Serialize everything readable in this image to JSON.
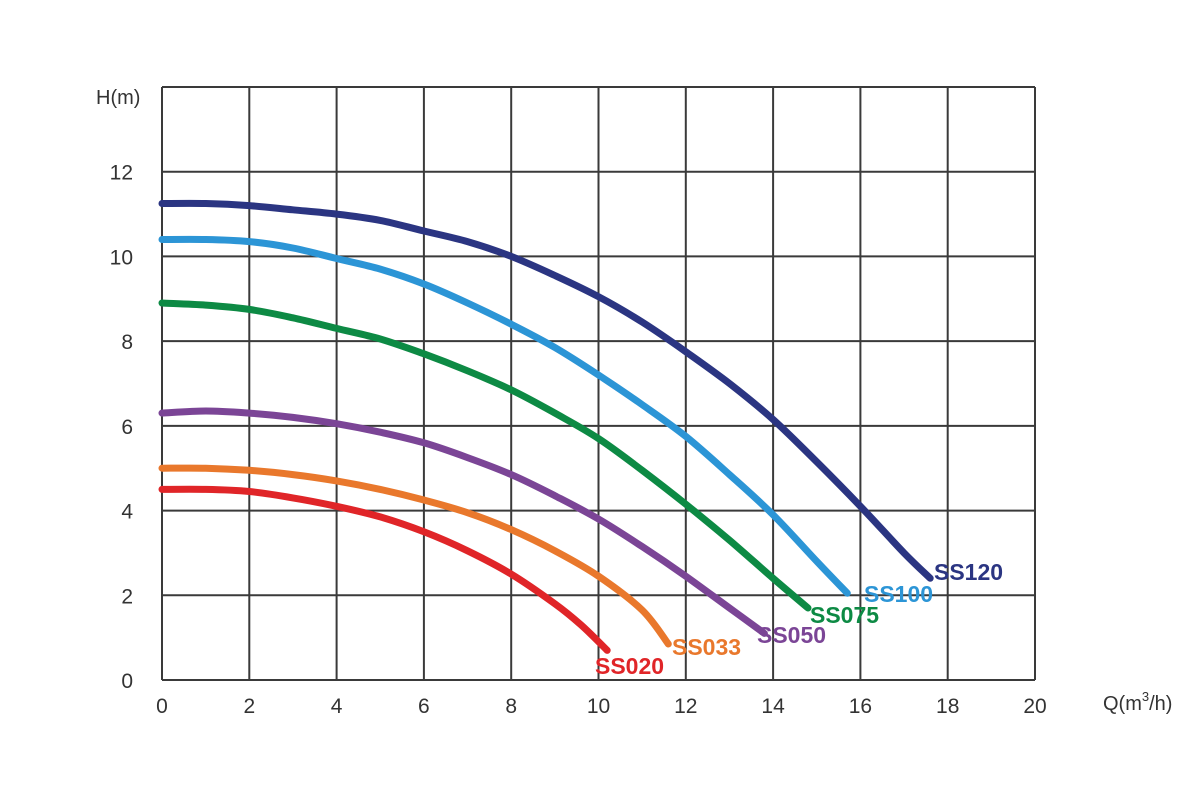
{
  "chart_data": {
    "type": "line",
    "xlabel": "Q(m³/h)",
    "xlabel_main": "Q(m",
    "xlabel_sup": "3",
    "xlabel_tail": "/h)",
    "ylabel": "H(m)",
    "xlim": [
      0,
      20
    ],
    "ylim": [
      0,
      14
    ],
    "x_ticks": [
      0,
      2,
      4,
      6,
      8,
      10,
      12,
      14,
      16,
      18,
      20
    ],
    "y_ticks": [
      0,
      2,
      4,
      6,
      8,
      10,
      12
    ],
    "y_tick_labels": [
      "0",
      "2",
      "4",
      "6",
      "8",
      "10",
      "12"
    ],
    "grid": true,
    "series": [
      {
        "name": "SS120",
        "color": "#2b3582",
        "x": [
          0,
          1,
          2,
          3,
          4,
          5,
          6,
          7,
          8,
          9,
          10,
          11,
          12,
          13,
          14,
          15,
          16,
          17,
          17.6
        ],
        "y": [
          11.25,
          11.25,
          11.2,
          11.1,
          11.0,
          10.85,
          10.6,
          10.35,
          10.0,
          9.55,
          9.05,
          8.45,
          7.75,
          7.0,
          6.15,
          5.15,
          4.1,
          3.0,
          2.4
        ]
      },
      {
        "name": "SS100",
        "color": "#2c95d6",
        "x": [
          0,
          1,
          2,
          3,
          4,
          5,
          6,
          7,
          8,
          9,
          10,
          11,
          12,
          13,
          14,
          15,
          15.7
        ],
        "y": [
          10.4,
          10.4,
          10.35,
          10.2,
          9.95,
          9.7,
          9.35,
          8.9,
          8.4,
          7.85,
          7.2,
          6.5,
          5.75,
          4.85,
          3.9,
          2.8,
          2.05
        ]
      },
      {
        "name": "SS075",
        "color": "#0d8a44",
        "x": [
          0,
          1,
          2,
          3,
          4,
          5,
          6,
          7,
          8,
          9,
          10,
          11,
          12,
          13,
          14,
          14.8
        ],
        "y": [
          8.9,
          8.85,
          8.75,
          8.55,
          8.3,
          8.05,
          7.7,
          7.3,
          6.85,
          6.3,
          5.7,
          4.95,
          4.15,
          3.3,
          2.4,
          1.7
        ]
      },
      {
        "name": "SS050",
        "color": "#7b4596",
        "x": [
          0,
          1,
          2,
          3,
          4,
          5,
          6,
          7,
          8,
          9,
          10,
          11,
          12,
          13,
          13.8
        ],
        "y": [
          6.3,
          6.35,
          6.3,
          6.2,
          6.05,
          5.85,
          5.6,
          5.25,
          4.85,
          4.35,
          3.8,
          3.15,
          2.45,
          1.7,
          1.1
        ]
      },
      {
        "name": "SS033",
        "color": "#e9782c",
        "x": [
          0,
          1,
          2,
          3,
          4,
          5,
          6,
          7,
          8,
          9,
          10,
          11,
          11.6
        ],
        "y": [
          5.0,
          5.0,
          4.95,
          4.85,
          4.7,
          4.5,
          4.25,
          3.95,
          3.55,
          3.05,
          2.45,
          1.65,
          0.85
        ]
      },
      {
        "name": "SS020",
        "color": "#e02528",
        "x": [
          0,
          1,
          2,
          3,
          4,
          5,
          6,
          7,
          8,
          9,
          9.6,
          10.2
        ],
        "y": [
          4.5,
          4.5,
          4.45,
          4.3,
          4.1,
          3.85,
          3.5,
          3.05,
          2.5,
          1.8,
          1.3,
          0.7
        ]
      }
    ]
  }
}
